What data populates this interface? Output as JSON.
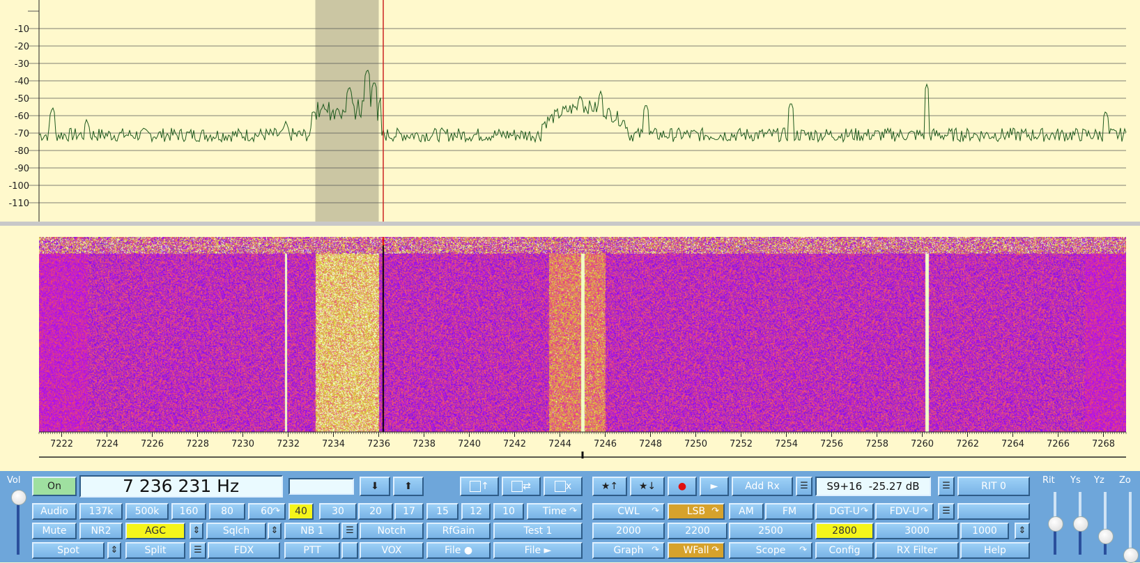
{
  "spectrum": {
    "db_labels": [
      "-10",
      "-20",
      "-30",
      "-40",
      "-50",
      "-60",
      "-70",
      "-80",
      "-90",
      "-100",
      "-110"
    ],
    "db_values": [
      -10,
      -20,
      -30,
      -40,
      -50,
      -60,
      -70,
      -80,
      -90,
      -100,
      -110
    ],
    "db_range": [
      0,
      -120
    ],
    "freq_range_khz": [
      7221.0,
      7269.0
    ],
    "filter_passband_khz": [
      7233.2,
      7236.0
    ],
    "cursor_khz": 7236.2,
    "noise_floor_db": -71,
    "peaks": [
      {
        "khz": 7221.6,
        "db": -55
      },
      {
        "khz": 7223.1,
        "db": -62
      },
      {
        "khz": 7231.9,
        "db": -63
      },
      {
        "khz": 7234.7,
        "db": -43
      },
      {
        "khz": 7235.5,
        "db": -33
      },
      {
        "khz": 7235.8,
        "db": -40
      },
      {
        "khz": 7244.9,
        "db": -48
      },
      {
        "khz": 7245.8,
        "db": -46
      },
      {
        "khz": 7247.8,
        "db": -53
      },
      {
        "khz": 7254.2,
        "db": -52
      },
      {
        "khz": 7260.2,
        "db": -42
      },
      {
        "khz": 7268.1,
        "db": -57
      }
    ],
    "colors": {
      "bg": "#fff9cc",
      "trace": "#1e5a1e",
      "grid": "#555555",
      "passband": "#cbc6a3",
      "cursor": "#cc2222"
    }
  },
  "waterfall": {
    "freq_ticks": [
      "7222",
      "7224",
      "7226",
      "7228",
      "7230",
      "7232",
      "7234",
      "7236",
      "7238",
      "7240",
      "7242",
      "7244",
      "7246",
      "7248",
      "7250",
      "7252",
      "7254",
      "7256",
      "7258",
      "7260",
      "7262",
      "7264",
      "7266",
      "7268"
    ],
    "tick_values_khz": [
      7222,
      7224,
      7226,
      7228,
      7230,
      7232,
      7234,
      7236,
      7238,
      7240,
      7242,
      7244,
      7246,
      7248,
      7250,
      7252,
      7254,
      7256,
      7258,
      7260,
      7262,
      7264,
      7266,
      7268
    ],
    "tuning_marker_khz": 7245.0
  },
  "sliders": {
    "vol": {
      "label": "Vol",
      "level": 0.92
    },
    "rit": {
      "label": "Rit",
      "level": 0.5
    },
    "ys": {
      "label": "Ys",
      "level": 0.5
    },
    "yz": {
      "label": "Yz",
      "level": 0.3
    },
    "zo": {
      "label": "Zo",
      "level": 0.0
    }
  },
  "frequency_display": "7 236 231 Hz",
  "blank_display": "",
  "smeter_display": "S9+16  -25.27 dB",
  "buttons": {
    "on": "On",
    "down": "⬇",
    "up": "⬆",
    "mem_up": "↑",
    "mem_swap": "⇄",
    "mem_x": "x",
    "star_up": "★↑",
    "star_down": "★↓",
    "rec": "●",
    "play": "►",
    "add_rx": "Add Rx",
    "rit0": "RIT 0",
    "audio": "Audio",
    "b137k": "137k",
    "b500k": "500k",
    "b160": "160",
    "b80": "80",
    "b60": "60",
    "b40": "40",
    "b30": "30",
    "b20": "20",
    "b17": "17",
    "b15": "15",
    "b12": "12",
    "b10": "10",
    "time": "Time",
    "cwl": "CWL",
    "lsb": "LSB",
    "am": "AM",
    "fm": "FM",
    "dgtu": "DGT-U",
    "fdvu": "FDV-U",
    "blank_right": "",
    "mute": "Mute",
    "nr2": "NR2",
    "agc": "AGC",
    "sqlch": "Sqlch",
    "nb1": "NB 1",
    "notch": "Notch",
    "rfgain": "RfGain",
    "test1": "Test 1",
    "f2000": "2000",
    "f2200": "2200",
    "f2500": "2500",
    "f2800": "2800",
    "f3000": "3000",
    "f1000": "1000",
    "spot": "Spot",
    "split": "Split",
    "fdx": "FDX",
    "ptt": "PTT",
    "vox": "VOX",
    "file_rec": "File ●",
    "file_play": "File ►",
    "graph": "Graph",
    "wfall": "WFall",
    "scope": "Scope",
    "config": "Config",
    "rx_filter": "RX Filter",
    "help": "Help"
  },
  "icons": {
    "menu": "list-icon",
    "updown": "adjust-icon",
    "loop": "loop-arrow-icon"
  }
}
